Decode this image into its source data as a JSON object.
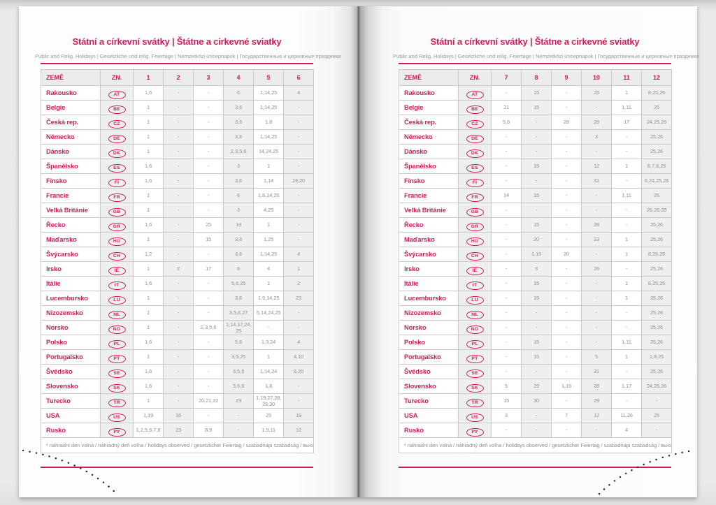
{
  "accent": "#d31b5c",
  "page": {
    "title": "Státní a církevní svátky | Štátne a cirkevné sviatky",
    "subtitle": "Public and Relig. Holidays | Gesetzliche und relig. Feiertage | Nemzetközi ünnepnapok | Государственные и церковные праздники",
    "footnote": "* náhradní den volna / náhradný deň voľna / holidays observed / gesetzlicher Feiertag / szabadnapi szabadság / выходной день",
    "columns": {
      "country": "ZEMĚ",
      "code": "ZN."
    },
    "left_months": [
      "1",
      "2",
      "3",
      "4",
      "5",
      "6"
    ],
    "right_months": [
      "7",
      "8",
      "9",
      "10",
      "11",
      "12"
    ]
  },
  "rows": [
    {
      "name": "Rakousko",
      "code": "AT",
      "left": [
        "1, 6",
        "-",
        "-",
        "6",
        "1, 14, 25",
        "4"
      ],
      "right": [
        "-",
        "15",
        "-",
        "26",
        "1",
        "8, 25, 26"
      ]
    },
    {
      "name": "Belgie",
      "code": "BE",
      "left": [
        "1",
        "-",
        "-",
        "3, 6",
        "1, 14, 25",
        "-"
      ],
      "right": [
        "21",
        "15",
        "-",
        "-",
        "1, 11",
        "25"
      ]
    },
    {
      "name": "Česká rep.",
      "code": "CZ",
      "left": [
        "1",
        "-",
        "-",
        "3, 6",
        "1, 8",
        "-"
      ],
      "right": [
        "5, 6",
        "-",
        "28",
        "28",
        "17",
        "24, 25, 26"
      ]
    },
    {
      "name": "Německo",
      "code": "DE",
      "left": [
        "1",
        "-",
        "-",
        "3, 6",
        "1, 14, 25",
        "-"
      ],
      "right": [
        "-",
        "-",
        "-",
        "3",
        "-",
        "25, 26"
      ]
    },
    {
      "name": "Dánsko",
      "code": "DK",
      "left": [
        "1",
        "-",
        "-",
        "2, 3, 5, 6",
        "14, 24, 25",
        "-"
      ],
      "right": [
        "-",
        "-",
        "-",
        "-",
        "-",
        "25, 26"
      ]
    },
    {
      "name": "Španělsko",
      "code": "ES",
      "left": [
        "1, 6",
        "-",
        "-",
        "3",
        "1",
        "-"
      ],
      "right": [
        "-",
        "15",
        "-",
        "12",
        "1",
        "6, 7, 8, 25"
      ]
    },
    {
      "name": "Finsko",
      "code": "FI",
      "left": [
        "1, 6",
        "-",
        "-",
        "3, 6",
        "1, 14",
        "19, 20"
      ],
      "right": [
        "-",
        "-",
        "-",
        "31",
        "-",
        "6, 24, 25, 26"
      ]
    },
    {
      "name": "Francie",
      "code": "FR",
      "left": [
        "1",
        "-",
        "-",
        "6",
        "1, 8, 14, 25",
        "-"
      ],
      "right": [
        "14",
        "15",
        "-",
        "-",
        "1, 11",
        "25"
      ]
    },
    {
      "name": "Velká Británie",
      "code": "GB",
      "left": [
        "1",
        "-",
        "-",
        "3",
        "4, 25",
        "-"
      ],
      "right": [
        "-",
        "-",
        "-",
        "-",
        "-",
        "25, 26, 28"
      ]
    },
    {
      "name": "Řecko",
      "code": "GR",
      "left": [
        "1, 6",
        "-",
        "25",
        "13",
        "1",
        "-"
      ],
      "right": [
        "-",
        "15",
        "-",
        "28",
        "-",
        "25, 26"
      ]
    },
    {
      "name": "Maďarsko",
      "code": "HU",
      "left": [
        "1",
        "-",
        "15",
        "3, 6",
        "1, 25",
        "-"
      ],
      "right": [
        "-",
        "20",
        "-",
        "23",
        "1",
        "25, 26"
      ]
    },
    {
      "name": "Švýcarsko",
      "code": "CH",
      "left": [
        "1, 2",
        "-",
        "-",
        "3, 6",
        "1, 14, 25",
        "4"
      ],
      "right": [
        "-",
        "1, 15",
        "20",
        "-",
        "1",
        "8, 25, 26"
      ]
    },
    {
      "name": "Irsko",
      "code": "IE",
      "left": [
        "1",
        "2",
        "17",
        "6",
        "4",
        "1"
      ],
      "right": [
        "-",
        "3",
        "-",
        "26",
        "-",
        "25, 26"
      ]
    },
    {
      "name": "Itálie",
      "code": "IT",
      "left": [
        "1, 6",
        "-",
        "-",
        "5, 6, 25",
        "1",
        "2"
      ],
      "right": [
        "-",
        "15",
        "-",
        "-",
        "1",
        "8, 25, 26"
      ]
    },
    {
      "name": "Lucembursko",
      "code": "LU",
      "left": [
        "1",
        "-",
        "-",
        "3, 6",
        "1, 9, 14, 25",
        "23"
      ],
      "right": [
        "-",
        "15",
        "-",
        "-",
        "1",
        "25, 26"
      ]
    },
    {
      "name": "Nizozemsko",
      "code": "NL",
      "left": [
        "1",
        "-",
        "-",
        "3, 5, 6, 27",
        "5, 14, 24, 25",
        "-"
      ],
      "right": [
        "-",
        "-",
        "-",
        "-",
        "-",
        "25, 26"
      ]
    },
    {
      "name": "Norsko",
      "code": "NO",
      "left": [
        "1",
        "-",
        "2, 3, 5, 6",
        "1, 14, 17, 24, 25",
        "-",
        "-"
      ],
      "right": [
        "-",
        "-",
        "-",
        "-",
        "-",
        "25, 26"
      ]
    },
    {
      "name": "Polsko",
      "code": "PL",
      "left": [
        "1, 6",
        "-",
        "-",
        "5, 6",
        "1, 3, 24",
        "4"
      ],
      "right": [
        "-",
        "15",
        "-",
        "-",
        "1, 11",
        "25, 26"
      ]
    },
    {
      "name": "Portugalsko",
      "code": "PT",
      "left": [
        "1",
        "-",
        "-",
        "3, 5, 25",
        "1",
        "4, 10"
      ],
      "right": [
        "-",
        "15",
        "-",
        "5",
        "1",
        "1, 8, 25"
      ]
    },
    {
      "name": "Švédsko",
      "code": "SE",
      "left": [
        "1, 6",
        "-",
        "-",
        "3, 5, 6",
        "1, 14, 24",
        "6, 20"
      ],
      "right": [
        "-",
        "-",
        "-",
        "31",
        "-",
        "25, 26"
      ]
    },
    {
      "name": "Slovensko",
      "code": "SK",
      "left": [
        "1, 6",
        "-",
        "-",
        "3, 5, 6",
        "1, 8",
        "-"
      ],
      "right": [
        "5",
        "29",
        "1, 15",
        "28",
        "1, 17",
        "24, 25, 26"
      ]
    },
    {
      "name": "Turecko",
      "code": "TR",
      "left": [
        "1",
        "-",
        "20, 21, 22",
        "23",
        "1, 19, 27, 28, 29, 30",
        "-"
      ],
      "right": [
        "15",
        "30",
        "-",
        "29",
        "-",
        "-"
      ]
    },
    {
      "name": "USA",
      "code": "US",
      "left": [
        "1, 19",
        "16",
        "-",
        "-",
        "25",
        "19"
      ],
      "right": [
        "3",
        "-",
        "7",
        "12",
        "11, 26",
        "25"
      ]
    },
    {
      "name": "Rusko",
      "code": "РУ",
      "left": [
        "1, 2, 5, 6, 7, 8",
        "23",
        "8, 9",
        "-",
        "1, 9, 11",
        "12"
      ],
      "right": [
        "-",
        "-",
        "-",
        "-",
        "4",
        "-"
      ]
    }
  ]
}
